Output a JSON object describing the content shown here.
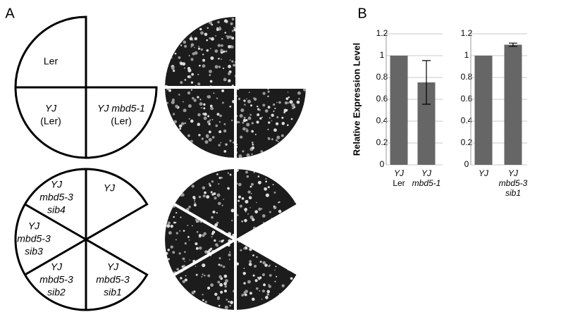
{
  "panel_labels": [
    "A",
    "B"
  ],
  "diagram_top": {
    "labels": [
      [
        "Ler"
      ],
      [
        "YJ",
        "(Ler)"
      ],
      [
        "YJ mbd5-1",
        "(Ler)"
      ]
    ]
  },
  "diagram_bottom": {
    "labels": [
      [
        "YJ"
      ],
      [
        "YJ",
        "mbd5-3",
        "sib4"
      ],
      [
        "YJ",
        "mbd5-3",
        "sib3"
      ],
      [
        "YJ",
        "mbd5-3",
        "sib2"
      ],
      [
        "YJ",
        "mbd5-3",
        "sib1"
      ]
    ]
  },
  "chart_data": [
    {
      "type": "bar",
      "ylabel": "Relative Expression Level",
      "categories": [
        [
          "YJ",
          "Ler"
        ],
        [
          "YJ",
          "mbd5-1"
        ]
      ],
      "values": [
        1,
        0.755
      ],
      "errors": [
        0,
        0.2
      ],
      "color": "#666666",
      "ylim": [
        0,
        1.2
      ],
      "yticks": [
        0,
        0.2,
        0.4,
        0.6,
        0.8,
        1,
        1.2
      ],
      "grid": true
    },
    {
      "type": "bar",
      "categories": [
        [
          "YJ"
        ],
        [
          "YJ",
          "mbd5-3",
          "sib1"
        ]
      ],
      "values": [
        1,
        1.1
      ],
      "errors": [
        0,
        0.015
      ],
      "color": "#666666",
      "ylim": [
        0,
        1.2
      ],
      "yticks": [
        0,
        0.2,
        0.4,
        0.6,
        0.8,
        1,
        1.2
      ],
      "grid": true
    }
  ]
}
